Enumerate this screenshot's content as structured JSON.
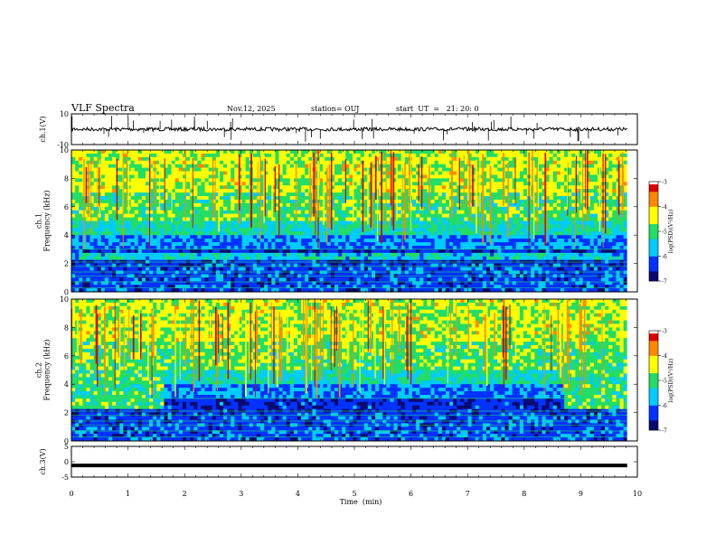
{
  "header": {
    "title": "VLF Spectra",
    "date": "Nov.12, 2025",
    "station": "station= OUJ",
    "start": "start  UT  =   21: 20: 0"
  },
  "colorbar": {
    "label": "log(PSD)(V²/Hz)",
    "colors": [
      "#0a0a6e",
      "#0033ff",
      "#00ccff",
      "#22dd66",
      "#ffff00",
      "#ff8800",
      "#dd0000",
      "#ffffff"
    ]
  },
  "chart_data": [
    {
      "type": "line",
      "name": "ch1-waveform",
      "ylabel": "ch.1(V)",
      "ylim": [
        -10,
        10
      ],
      "ytick_labels": [
        "10",
        "-10"
      ],
      "xlim": [
        0,
        10
      ],
      "description_values": "noisy baseline near 0 V with sparse vertical spikes",
      "baseline": 0
    },
    {
      "type": "heatmap",
      "name": "ch1-spectrogram",
      "ylabel": "ch.1\nFrequency  (kHz)",
      "xlim": [
        0,
        10
      ],
      "ylim": [
        0,
        10
      ],
      "ytick_labels": [
        "0",
        "2",
        "4",
        "6",
        "8",
        "10"
      ],
      "colorbar_range": [
        -7,
        -3
      ],
      "colorbar_tick_labels": [
        "-3",
        "-4",
        "-5",
        "-6",
        "-7"
      ]
    },
    {
      "type": "heatmap",
      "name": "ch2-spectrogram",
      "ylabel": "ch.2\nFrequency  (kHz)",
      "xlim": [
        0,
        10
      ],
      "ylim": [
        0,
        10
      ],
      "ytick_labels": [
        "0",
        "2",
        "4",
        "6",
        "8",
        "10"
      ],
      "colorbar_range": [
        -7,
        -3
      ],
      "colorbar_tick_labels": [
        "-3",
        "-4",
        "-5",
        "-6",
        "-7"
      ]
    },
    {
      "type": "line",
      "name": "ch3-waveform",
      "ylabel": "ch.3(V)",
      "ylim": [
        -5,
        5
      ],
      "ytick_labels": [
        "5",
        "0",
        "-5"
      ],
      "xlim": [
        0,
        9.82
      ],
      "x": [
        0,
        9.82
      ],
      "y": [
        -1.2,
        -1.2
      ]
    }
  ],
  "xaxis": {
    "label": "Time  (min)",
    "ticks": [
      0,
      1,
      2,
      3,
      4,
      5,
      6,
      7,
      8,
      9,
      10
    ],
    "tick_labels": [
      "0",
      "1",
      "2",
      "3",
      "4",
      "5",
      "6",
      "7",
      "8",
      "9",
      "10"
    ]
  }
}
